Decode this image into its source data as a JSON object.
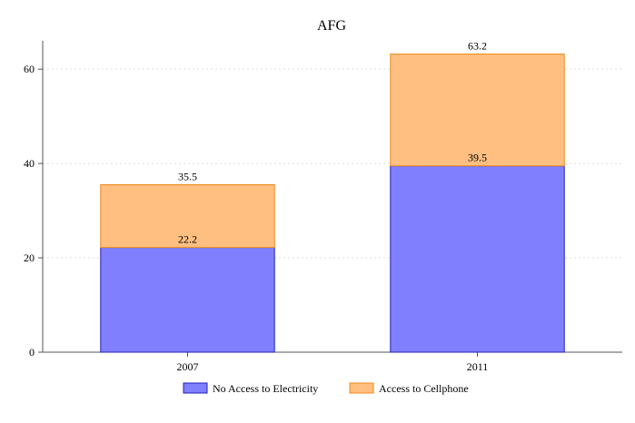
{
  "chart_data": {
    "type": "bar",
    "stacked": true,
    "title": "AFG",
    "xlabel": "",
    "ylabel": "",
    "categories": [
      "2007",
      "2011"
    ],
    "series": [
      {
        "name": "No Access to Electricity",
        "values": [
          22.2,
          39.5
        ],
        "labels": [
          "22.2",
          "39.5"
        ],
        "color": "#8080ff",
        "edge": "#1f1fb4"
      },
      {
        "name": "Access to Cellphone",
        "values": [
          13.3,
          23.7
        ],
        "labels": [
          "35.5",
          "63.2"
        ],
        "color": "#ffbf80",
        "edge": "#f0891a"
      }
    ],
    "ylim": [
      0,
      66
    ],
    "yticks": [
      0,
      20,
      40,
      60
    ],
    "grid": true,
    "legend": "bottom"
  }
}
